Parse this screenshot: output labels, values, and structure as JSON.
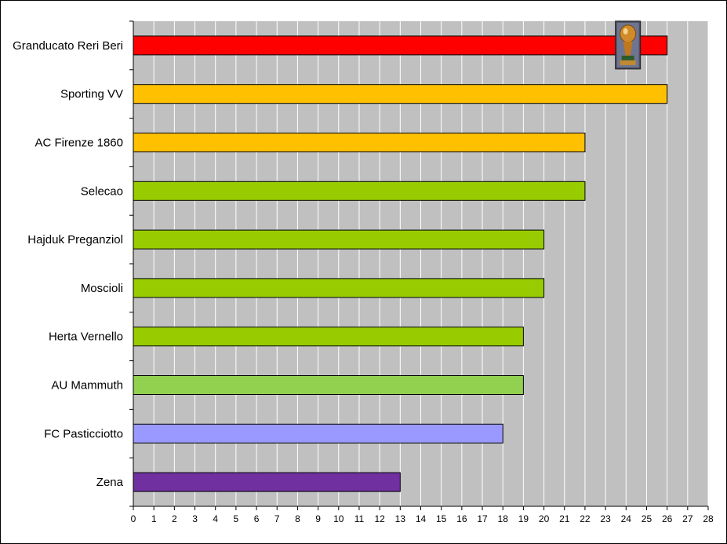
{
  "chart_data": {
    "type": "bar",
    "orientation": "horizontal",
    "categories": [
      "Granducato Reri Beri",
      "Sporting VV",
      "AC Firenze 1860",
      "Selecao",
      "Hajduk Preganziol",
      "Moscioli",
      "Herta Vernello",
      "AU Mammuth",
      "FC Pasticciotto",
      "Zena"
    ],
    "values": [
      26,
      26,
      22,
      22,
      20,
      20,
      19,
      19,
      18,
      13
    ],
    "colors": [
      "#ff0000",
      "#ffc000",
      "#ffc000",
      "#99cc00",
      "#99cc00",
      "#99cc00",
      "#99cc00",
      "#92d050",
      "#9999ff",
      "#7030a0"
    ],
    "xlim": [
      0,
      28
    ],
    "xticks": [
      0,
      1,
      2,
      3,
      4,
      5,
      6,
      7,
      8,
      9,
      10,
      11,
      12,
      13,
      14,
      15,
      16,
      17,
      18,
      19,
      20,
      21,
      22,
      23,
      24,
      25,
      26,
      27,
      28
    ],
    "grid": true,
    "plot_background": "#c0c0c0",
    "trophy_icon": "trophy-icon",
    "trophy_category": "Granducato Reri Beri"
  }
}
